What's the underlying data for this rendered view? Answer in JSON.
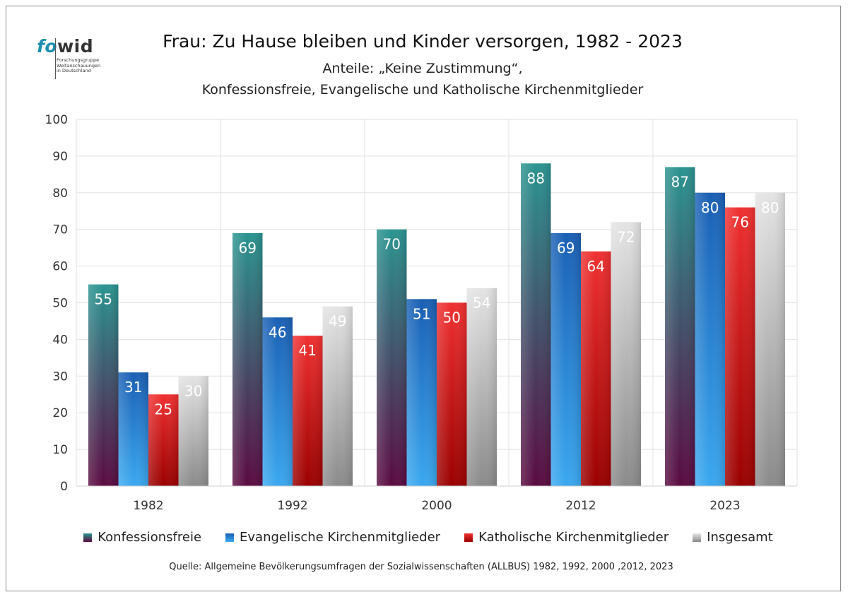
{
  "logo": {
    "text_fo": "fo",
    "text_wid": "wid",
    "subtitle_lines": [
      "Forschungsgruppe",
      "Weltanschauungen",
      "in Deutschland"
    ]
  },
  "title": "Frau: Zu Hause bleiben und Kinder versorgen, 1982 - 2023",
  "subtitle_line1": "Anteile: „Keine Zustimmung“,",
  "subtitle_line2": "Konfessionsfreie, Evangelische und Katholische Kirchenmitglieder",
  "source": "Quelle: Allgemeine Bevölkerungsumfragen der Sozialwissenschaften (ALLBUS) 1982, 1992, 2000 ,2012, 2023",
  "chart_data": {
    "type": "bar",
    "title": "Frau: Zu Hause bleiben und Kinder versorgen, 1982 - 2023",
    "xlabel": "",
    "ylabel": "",
    "ylim": [
      0,
      100
    ],
    "yticks": [
      0,
      10,
      20,
      30,
      40,
      50,
      60,
      70,
      80,
      90,
      100
    ],
    "grid": true,
    "legend_position": "bottom",
    "categories": [
      "1982",
      "1992",
      "2000",
      "2012",
      "2023"
    ],
    "series": [
      {
        "name": "Konfessionsfreie",
        "values": [
          55,
          69,
          70,
          88,
          87
        ],
        "color_top": "#2a9490",
        "color_bottom": "#5a0a40"
      },
      {
        "name": "Evangelische Kirchenmitglieder",
        "values": [
          31,
          46,
          51,
          69,
          80
        ],
        "color_top": "#1a5fb4",
        "color_bottom": "#3aa8f0"
      },
      {
        "name": "Katholische Kirchenmitglieder",
        "values": [
          25,
          41,
          50,
          64,
          76
        ],
        "color_top": "#f03030",
        "color_bottom": "#9a0000"
      },
      {
        "name": "Insgesamt",
        "values": [
          30,
          49,
          54,
          72,
          80
        ],
        "color_top": "#e4e4e4",
        "color_bottom": "#8a8a8a"
      }
    ]
  }
}
